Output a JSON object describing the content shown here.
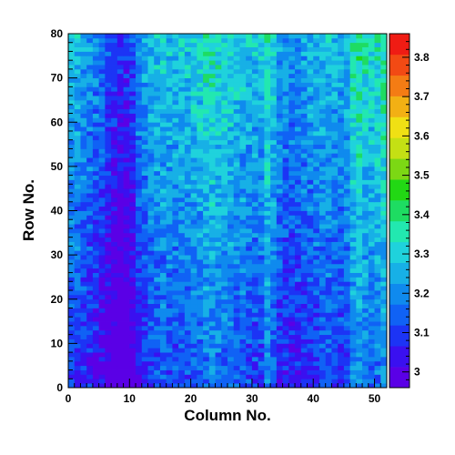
{
  "chart_data": {
    "type": "heatmap",
    "title": "",
    "xlabel": "Column No.",
    "ylabel": "Row No.",
    "xlim": [
      0,
      52
    ],
    "ylim": [
      0,
      80
    ],
    "zlim": [
      2.96,
      3.86
    ],
    "x_ticks": [
      0,
      10,
      20,
      30,
      40,
      50
    ],
    "y_ticks": [
      0,
      10,
      20,
      30,
      40,
      50,
      60,
      70,
      80
    ],
    "z_ticks": [
      3,
      3.1,
      3.2,
      3.3,
      3.4,
      3.5,
      3.6,
      3.7,
      3.8
    ],
    "x_tick_labels": [
      "0",
      "10",
      "20",
      "30",
      "40",
      "50"
    ],
    "y_tick_labels": [
      "0",
      "10",
      "20",
      "30",
      "40",
      "50",
      "60",
      "70",
      "80"
    ],
    "z_tick_labels": [
      "3",
      "3.1",
      "3.2",
      "3.3",
      "3.4",
      "3.5",
      "3.6",
      "3.7",
      "3.8"
    ],
    "n_columns": 52,
    "n_rows": 80,
    "cell_size": [
      1,
      1
    ],
    "column_means": [
      3.2,
      3.19,
      3.16,
      3.15,
      3.13,
      3.11,
      3.06,
      3.02,
      3.0,
      3.0,
      3.06,
      3.13,
      3.17,
      3.2,
      3.21,
      3.22,
      3.21,
      3.2,
      3.21,
      3.22,
      3.23,
      3.24,
      3.27,
      3.28,
      3.26,
      3.25,
      3.24,
      3.22,
      3.22,
      3.21,
      3.2,
      3.2,
      3.27,
      3.23,
      3.16,
      3.15,
      3.14,
      3.15,
      3.17,
      3.18,
      3.19,
      3.2,
      3.2,
      3.19,
      3.18,
      3.2,
      3.28,
      3.3,
      3.26,
      3.25,
      3.26,
      3.3
    ],
    "row_trend": {
      "row0": -0.1,
      "row80": 0.08
    },
    "palette": [
      "#5a00e6",
      "#3a10f0",
      "#1c34f5",
      "#1062f5",
      "#0f8aee",
      "#17b0e6",
      "#1fd2dc",
      "#22e8b0",
      "#1edc62",
      "#22d814",
      "#7cd814",
      "#c4e014",
      "#f0e014",
      "#f2b014",
      "#f47c14",
      "#f24a14",
      "#ef1c14"
    ]
  }
}
